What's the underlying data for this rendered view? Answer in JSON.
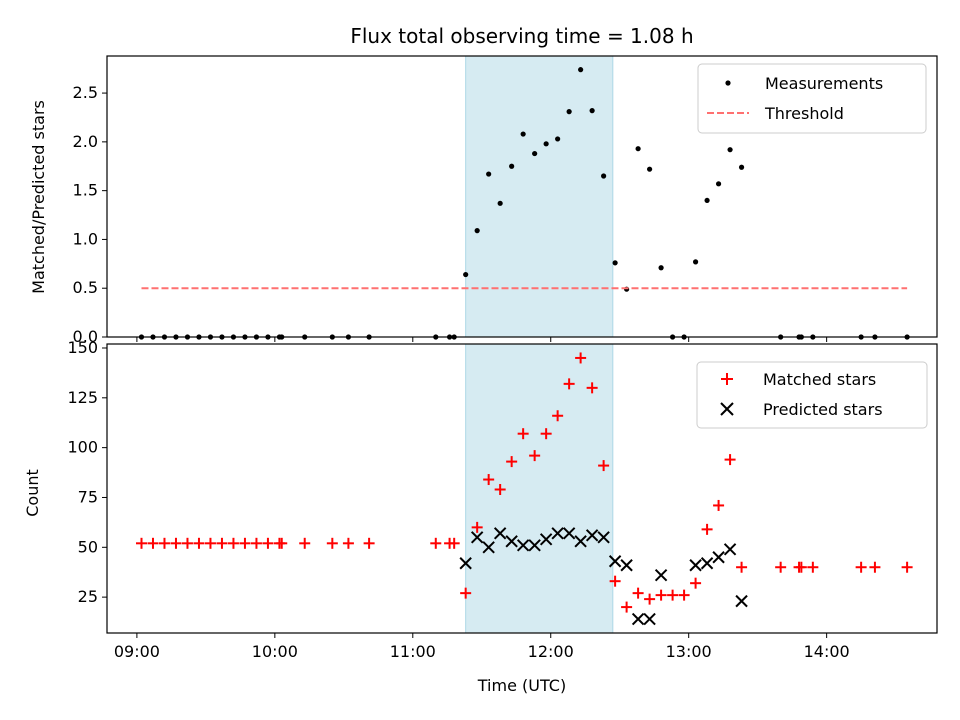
{
  "title": "Flux total observing time = 1.08 h",
  "chart_data": [
    {
      "type": "scatter",
      "panel": "top",
      "ylabel": "Matched/Predicted stars",
      "xlim": [
        "08:47",
        "14:48"
      ],
      "ylim": [
        0,
        2.88
      ],
      "yticks": [
        0.0,
        0.5,
        1.0,
        1.5,
        2.0,
        2.5
      ],
      "ytick_labels": [
        "0.0",
        "0.5",
        "1.0",
        "1.5",
        "2.0",
        "2.5"
      ],
      "highlight_span": {
        "start": "11:23",
        "end": "12:27",
        "color": "#add8e6"
      },
      "legend_position": "top-right",
      "series": [
        {
          "name": "Measurements",
          "marker": "dot",
          "color": "#000000",
          "points": [
            [
              "09:02",
              0
            ],
            [
              "09:07",
              0
            ],
            [
              "09:12",
              0
            ],
            [
              "09:17",
              0
            ],
            [
              "09:22",
              0
            ],
            [
              "09:27",
              0
            ],
            [
              "09:32",
              0
            ],
            [
              "09:37",
              0
            ],
            [
              "09:42",
              0
            ],
            [
              "09:47",
              0
            ],
            [
              "09:52",
              0
            ],
            [
              "09:57",
              0
            ],
            [
              "10:02",
              0
            ],
            [
              "10:03",
              0
            ],
            [
              "10:13",
              0
            ],
            [
              "10:25",
              0
            ],
            [
              "10:32",
              0
            ],
            [
              "10:41",
              0
            ],
            [
              "11:10",
              0
            ],
            [
              "11:16",
              0
            ],
            [
              "11:18",
              0
            ],
            [
              "11:23",
              0.64
            ],
            [
              "11:28",
              1.09
            ],
            [
              "11:33",
              1.67
            ],
            [
              "11:38",
              1.37
            ],
            [
              "11:43",
              1.75
            ],
            [
              "11:48",
              2.08
            ],
            [
              "11:53",
              1.88
            ],
            [
              "11:58",
              1.98
            ],
            [
              "12:03",
              2.03
            ],
            [
              "12:08",
              2.31
            ],
            [
              "12:13",
              2.74
            ],
            [
              "12:18",
              2.32
            ],
            [
              "12:23",
              1.65
            ],
            [
              "12:28",
              0.76
            ],
            [
              "12:33",
              0.49
            ],
            [
              "12:38",
              1.93
            ],
            [
              "12:43",
              1.72
            ],
            [
              "12:48",
              0.71
            ],
            [
              "12:53",
              0
            ],
            [
              "12:58",
              0
            ],
            [
              "13:03",
              0.77
            ],
            [
              "13:08",
              1.4
            ],
            [
              "13:13",
              1.57
            ],
            [
              "13:18",
              1.92
            ],
            [
              "13:23",
              1.74
            ],
            [
              "13:40",
              0
            ],
            [
              "13:48",
              0
            ],
            [
              "13:49",
              0
            ],
            [
              "13:54",
              0
            ],
            [
              "14:15",
              0
            ],
            [
              "14:21",
              0
            ],
            [
              "14:35",
              0
            ]
          ]
        },
        {
          "name": "Threshold",
          "style": "dashed",
          "color": "#ff7070",
          "points": [
            [
              "09:02",
              0.5
            ],
            [
              "14:35",
              0.5
            ]
          ]
        }
      ]
    },
    {
      "type": "scatter",
      "panel": "bottom",
      "xlabel": "Time (UTC)",
      "ylabel": "Count",
      "xlim": [
        "08:47",
        "14:48"
      ],
      "ylim": [
        7,
        152
      ],
      "xticks": [
        "09:00",
        "10:00",
        "11:00",
        "12:00",
        "13:00",
        "14:00"
      ],
      "yticks": [
        25,
        50,
        75,
        100,
        125,
        150
      ],
      "ytick_labels": [
        "25",
        "50",
        "75",
        "100",
        "125",
        "150"
      ],
      "highlight_span": {
        "start": "11:23",
        "end": "12:27",
        "color": "#add8e6"
      },
      "legend_position": "top-right",
      "series": [
        {
          "name": "Matched stars",
          "marker": "plus",
          "color": "#ff0000",
          "points": [
            [
              "09:02",
              52
            ],
            [
              "09:07",
              52
            ],
            [
              "09:12",
              52
            ],
            [
              "09:17",
              52
            ],
            [
              "09:22",
              52
            ],
            [
              "09:27",
              52
            ],
            [
              "09:32",
              52
            ],
            [
              "09:37",
              52
            ],
            [
              "09:42",
              52
            ],
            [
              "09:47",
              52
            ],
            [
              "09:52",
              52
            ],
            [
              "09:57",
              52
            ],
            [
              "10:02",
              52
            ],
            [
              "10:03",
              52
            ],
            [
              "10:13",
              52
            ],
            [
              "10:25",
              52
            ],
            [
              "10:32",
              52
            ],
            [
              "10:41",
              52
            ],
            [
              "11:10",
              52
            ],
            [
              "11:16",
              52
            ],
            [
              "11:18",
              52
            ],
            [
              "11:23",
              27
            ],
            [
              "11:28",
              60
            ],
            [
              "11:33",
              84
            ],
            [
              "11:38",
              79
            ],
            [
              "11:43",
              93
            ],
            [
              "11:48",
              107
            ],
            [
              "11:53",
              96
            ],
            [
              "11:58",
              107
            ],
            [
              "12:03",
              116
            ],
            [
              "12:08",
              132
            ],
            [
              "12:13",
              145
            ],
            [
              "12:18",
              130
            ],
            [
              "12:23",
              91
            ],
            [
              "12:28",
              33
            ],
            [
              "12:33",
              20
            ],
            [
              "12:38",
              27
            ],
            [
              "12:43",
              24
            ],
            [
              "12:48",
              26
            ],
            [
              "12:53",
              26
            ],
            [
              "12:58",
              26
            ],
            [
              "13:03",
              32
            ],
            [
              "13:08",
              59
            ],
            [
              "13:13",
              71
            ],
            [
              "13:18",
              94
            ],
            [
              "13:23",
              40
            ],
            [
              "13:40",
              40
            ],
            [
              "13:48",
              40
            ],
            [
              "13:49",
              40
            ],
            [
              "13:54",
              40
            ],
            [
              "14:15",
              40
            ],
            [
              "14:21",
              40
            ],
            [
              "14:35",
              40
            ]
          ]
        },
        {
          "name": "Predicted stars",
          "marker": "x",
          "color": "#000000",
          "points": [
            [
              "11:23",
              42
            ],
            [
              "11:28",
              55
            ],
            [
              "11:33",
              50
            ],
            [
              "11:38",
              57
            ],
            [
              "11:43",
              53
            ],
            [
              "11:48",
              51
            ],
            [
              "11:53",
              51
            ],
            [
              "11:58",
              54
            ],
            [
              "12:03",
              57
            ],
            [
              "12:08",
              57
            ],
            [
              "12:13",
              53
            ],
            [
              "12:18",
              56
            ],
            [
              "12:23",
              55
            ],
            [
              "12:28",
              43
            ],
            [
              "12:33",
              41
            ],
            [
              "12:38",
              14
            ],
            [
              "12:43",
              14
            ],
            [
              "12:48",
              36
            ],
            [
              "13:03",
              41
            ],
            [
              "13:08",
              42
            ],
            [
              "13:13",
              45
            ],
            [
              "13:18",
              49
            ],
            [
              "13:23",
              23
            ]
          ]
        }
      ]
    }
  ]
}
